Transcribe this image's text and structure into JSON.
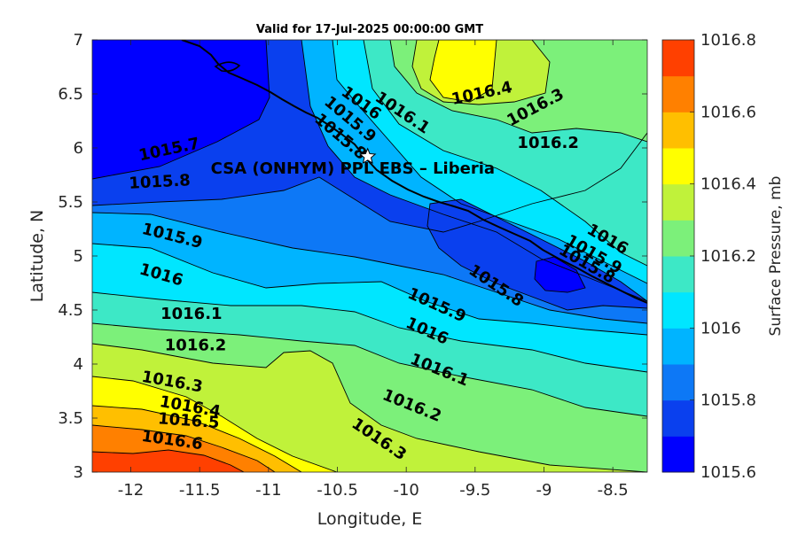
{
  "chart_data": {
    "type": "heatmap",
    "title": "Valid for 17-Jul-2025 00:00:00 GMT",
    "xlabel": "Longitude, E",
    "ylabel": "Latitude, N",
    "xlim": [
      -12.28,
      -8.25
    ],
    "ylim": [
      3,
      7
    ],
    "x_ticks": [
      -12,
      -11.5,
      -11,
      -10.5,
      -10,
      -9.5,
      -9,
      -8.5
    ],
    "x_tick_labels": [
      "-12",
      "-11.5",
      "-11",
      "-10.5",
      "-10",
      "-9.5",
      "-9",
      "-8.5"
    ],
    "y_ticks": [
      3,
      3.5,
      4,
      4.5,
      5,
      5.5,
      6,
      6.5,
      7
    ],
    "y_tick_labels": [
      "3",
      "3.5",
      "4",
      "4.5",
      "5",
      "5.5",
      "6",
      "6.5",
      "7"
    ],
    "colorbar": {
      "label": "Surface Pressure, mb",
      "levels": [
        1015.6,
        1015.7,
        1015.8,
        1015.9,
        1016.0,
        1016.1,
        1016.2,
        1016.3,
        1016.4,
        1016.5,
        1016.6,
        1016.7,
        1016.8
      ],
      "tick_values": [
        1015.6,
        1015.8,
        1016.0,
        1016.2,
        1016.4,
        1016.6,
        1016.8
      ],
      "tick_labels": [
        "1015.6",
        "1015.8",
        "1016",
        "1016.2",
        "1016.4",
        "1016.6",
        "1016.8"
      ],
      "colors": [
        "#0000ff",
        "#0a40ee",
        "#0d78f6",
        "#00b4ff",
        "#00e6ff",
        "#3de8c6",
        "#7cf07a",
        "#c0f23a",
        "#ffff00",
        "#ffbf00",
        "#ff8000",
        "#ff4000"
      ]
    },
    "contour_labels": [
      {
        "text": "1015.7",
        "lon": -11.72,
        "lat": 5.98,
        "angle": -12
      },
      {
        "text": "1015.8",
        "lon": -11.79,
        "lat": 5.68,
        "angle": -3
      },
      {
        "text": "1015.9",
        "lon": -11.7,
        "lat": 5.18,
        "angle": 14
      },
      {
        "text": "1016",
        "lon": -11.78,
        "lat": 4.82,
        "angle": 16
      },
      {
        "text": "1016.1",
        "lon": -11.56,
        "lat": 4.46,
        "angle": 0
      },
      {
        "text": "1016.2",
        "lon": -11.53,
        "lat": 4.17,
        "angle": 0
      },
      {
        "text": "1016.3",
        "lon": -11.7,
        "lat": 3.83,
        "angle": 10
      },
      {
        "text": "1016.4",
        "lon": -11.57,
        "lat": 3.6,
        "angle": 10
      },
      {
        "text": "1016.5",
        "lon": -11.58,
        "lat": 3.47,
        "angle": 4
      },
      {
        "text": "1016.6",
        "lon": -11.7,
        "lat": 3.29,
        "angle": 8
      },
      {
        "text": "1015.8",
        "lon": -10.48,
        "lat": 6.1,
        "angle": 40
      },
      {
        "text": "1015.9",
        "lon": -10.41,
        "lat": 6.26,
        "angle": 40
      },
      {
        "text": "1016",
        "lon": -10.33,
        "lat": 6.41,
        "angle": 36
      },
      {
        "text": "1016.1",
        "lon": -10.03,
        "lat": 6.32,
        "angle": 34
      },
      {
        "text": "1016.4",
        "lon": -9.45,
        "lat": 6.5,
        "angle": -12
      },
      {
        "text": "1016.3",
        "lon": -9.06,
        "lat": 6.37,
        "angle": -28
      },
      {
        "text": "1016.2",
        "lon": -8.97,
        "lat": 6.04,
        "angle": 0
      },
      {
        "text": "1016",
        "lon": -8.54,
        "lat": 5.15,
        "angle": 30
      },
      {
        "text": "1015.9",
        "lon": -8.64,
        "lat": 5.01,
        "angle": 30
      },
      {
        "text": "1015.8",
        "lon": -8.69,
        "lat": 4.92,
        "angle": 30
      },
      {
        "text": "1015.8",
        "lon": -9.35,
        "lat": 4.72,
        "angle": 34
      },
      {
        "text": "1015.9",
        "lon": -9.78,
        "lat": 4.54,
        "angle": 24
      },
      {
        "text": "1016",
        "lon": -9.85,
        "lat": 4.3,
        "angle": 24
      },
      {
        "text": "1016.1",
        "lon": -9.76,
        "lat": 3.94,
        "angle": 22
      },
      {
        "text": "1016.2",
        "lon": -9.96,
        "lat": 3.61,
        "angle": 22
      },
      {
        "text": "1016.3",
        "lon": -10.2,
        "lat": 3.3,
        "angle": 34
      }
    ],
    "station": {
      "name": "CSA (ONHYM) PPL EBS  – Liberia",
      "lon": -10.28,
      "lat": 5.92
    }
  }
}
